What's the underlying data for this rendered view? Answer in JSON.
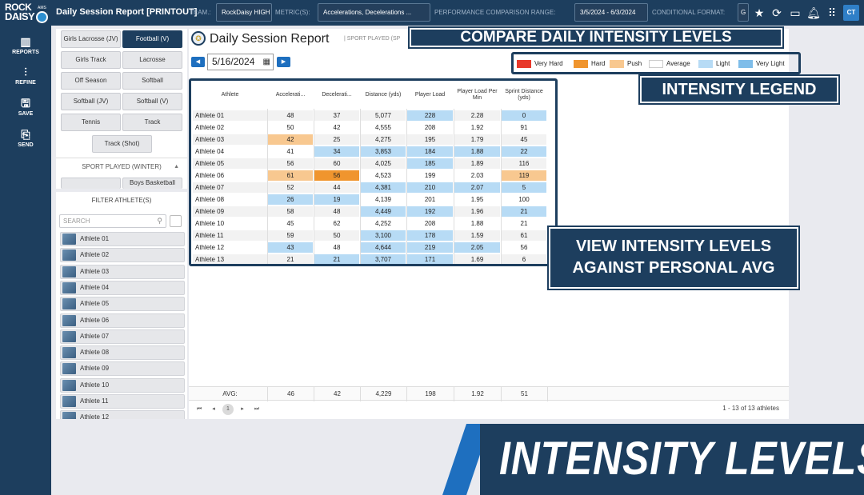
{
  "topbar": {
    "logo_line1": "ROCK",
    "logo_line2": "DAISY",
    "logo_ams": "AMS",
    "app_title": "Daily Session Report [PRINTOUT]",
    "team_label": "TEAM.:",
    "team_value": "RockDaisy HIGH",
    "metric_label": "METRIC(S):",
    "metric_value": "Accelerations,  Decelerations ...",
    "range_label": "PERFORMANCE COMPARISON RANGE:",
    "range_value": "3/5/2024 - 6/3/2024",
    "format_label": "CONDITIONAL FORMAT:",
    "format_value": "G",
    "user_initials": "CT",
    "icons": [
      "star-icon",
      "refresh-icon",
      "monitor-icon",
      "bell-icon",
      "grid-icon"
    ]
  },
  "nav": {
    "items": [
      {
        "label": "REPORTS",
        "icon": "chart-icon"
      },
      {
        "label": "REFINE",
        "icon": "sliders-icon"
      },
      {
        "label": "SAVE",
        "icon": "save-icon"
      },
      {
        "label": "SEND",
        "icon": "send-icon"
      }
    ]
  },
  "sports": {
    "buttons": [
      {
        "label": "Girls Lacrosse (JV)",
        "active": false
      },
      {
        "label": "Football (V)",
        "active": true
      },
      {
        "label": "Girls Track",
        "active": false
      },
      {
        "label": "Lacrosse",
        "active": false
      },
      {
        "label": "Off Season",
        "active": false
      },
      {
        "label": "Softball",
        "active": false
      },
      {
        "label": "Softball (JV)",
        "active": false
      },
      {
        "label": "Softball (V)",
        "active": false
      },
      {
        "label": "Tennis",
        "active": false
      },
      {
        "label": "Track",
        "active": false
      },
      {
        "label": "Track (Shot)",
        "active": false
      }
    ],
    "winter_header": "SPORT PLAYED (WINTER)",
    "winter_next": "Boys Basketball"
  },
  "athletes_filter": {
    "header": "FILTER ATHLETE(S)",
    "search_placeholder": "SEARCH",
    "list": [
      "Athlete 01",
      "Athlete 02",
      "Athlete 03",
      "Athlete 04",
      "Athlete 05",
      "Athlete 06",
      "Athlete 07",
      "Athlete 08",
      "Athlete 09",
      "Athlete 10",
      "Athlete 11",
      "Athlete 12"
    ]
  },
  "report": {
    "title": "Daily Session Report",
    "subtitle": "| SPORT PLAYED (SP",
    "date": "5/16/2024",
    "legend": [
      {
        "label": "Very Hard",
        "color": "#e8392b"
      },
      {
        "label": "Hard",
        "color": "#f0952e"
      },
      {
        "label": "Push",
        "color": "#f8c890"
      },
      {
        "label": "Average",
        "color": "#ffffff"
      },
      {
        "label": "Light",
        "color": "#b7dbf5"
      },
      {
        "label": "Very Light",
        "color": "#7fbde9"
      }
    ],
    "columns": [
      "Athlete",
      "Accelerati...",
      "Decelerati...",
      "Distance (yds)",
      "Player Load",
      "Player Load Per Min",
      "Sprint Distance (yds)"
    ],
    "rows": [
      {
        "name": "Athlete 01",
        "values": [
          "48",
          "37",
          "5,077",
          "228",
          "2.28",
          "0"
        ],
        "levels": [
          "a",
          "a",
          "a",
          "l",
          "a",
          "l"
        ]
      },
      {
        "name": "Athlete 02",
        "values": [
          "50",
          "42",
          "4,555",
          "208",
          "1.92",
          "91"
        ],
        "levels": [
          "a",
          "a",
          "a",
          "a",
          "a",
          "a"
        ]
      },
      {
        "name": "Athlete 03",
        "values": [
          "42",
          "25",
          "4,275",
          "195",
          "1.79",
          "45"
        ],
        "levels": [
          "p",
          "a",
          "a",
          "a",
          "a",
          "a"
        ]
      },
      {
        "name": "Athlete 04",
        "values": [
          "41",
          "34",
          "3,853",
          "184",
          "1.88",
          "22"
        ],
        "levels": [
          "a",
          "l",
          "l",
          "l",
          "l",
          "l"
        ]
      },
      {
        "name": "Athlete 05",
        "values": [
          "56",
          "60",
          "4,025",
          "185",
          "1.89",
          "116"
        ],
        "levels": [
          "a",
          "a",
          "a",
          "l",
          "a",
          "a"
        ]
      },
      {
        "name": "Athlete 06",
        "values": [
          "61",
          "56",
          "4,523",
          "199",
          "2.03",
          "119"
        ],
        "levels": [
          "p",
          "h",
          "a",
          "a",
          "a",
          "p"
        ]
      },
      {
        "name": "Athlete 07",
        "values": [
          "52",
          "44",
          "4,381",
          "210",
          "2.07",
          "5"
        ],
        "levels": [
          "a",
          "a",
          "l",
          "l",
          "l",
          "l"
        ]
      },
      {
        "name": "Athlete 08",
        "values": [
          "26",
          "19",
          "4,139",
          "201",
          "1.95",
          "100"
        ],
        "levels": [
          "l",
          "l",
          "a",
          "a",
          "a",
          "a"
        ]
      },
      {
        "name": "Athlete 09",
        "values": [
          "58",
          "48",
          "4,449",
          "192",
          "1.96",
          "21"
        ],
        "levels": [
          "a",
          "a",
          "l",
          "l",
          "a",
          "l"
        ]
      },
      {
        "name": "Athlete 10",
        "values": [
          "45",
          "62",
          "4,252",
          "208",
          "1.88",
          "21"
        ],
        "levels": [
          "a",
          "a",
          "a",
          "a",
          "a",
          "a"
        ]
      },
      {
        "name": "Athlete 11",
        "values": [
          "59",
          "50",
          "3,100",
          "178",
          "1.59",
          "61"
        ],
        "levels": [
          "a",
          "a",
          "l",
          "l",
          "a",
          "a"
        ]
      },
      {
        "name": "Athlete 12",
        "values": [
          "43",
          "48",
          "4,644",
          "219",
          "2.05",
          "56"
        ],
        "levels": [
          "l",
          "a",
          "l",
          "l",
          "l",
          "a"
        ]
      },
      {
        "name": "Athlete 13",
        "values": [
          "21",
          "21",
          "3,707",
          "171",
          "1.69",
          "6"
        ],
        "levels": [
          "a",
          "l",
          "l",
          "l",
          "a",
          "a"
        ]
      }
    ],
    "avg_label": "AVG:",
    "avg_values": [
      "46",
      "42",
      "4,229",
      "198",
      "1.92",
      "51"
    ],
    "pager_page": "1",
    "pager_info": "1 - 13 of 13 athletes"
  },
  "callouts": {
    "compare": "COMPARE DAILY INTENSITY LEVELS",
    "legend": "INTENSITY LEGEND",
    "view_line1": "VIEW INTENSITY LEVELS",
    "view_line2": "AGAINST PERSONAL AVG"
  },
  "banner": "INTENSITY LEVELS"
}
